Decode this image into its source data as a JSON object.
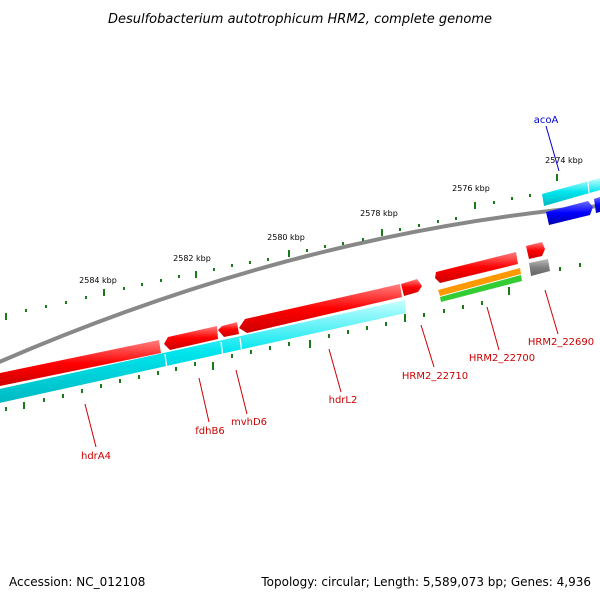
{
  "title": "Desulfobacterium autotrophicum HRM2, complete genome",
  "footer": {
    "accession": "Accession: NC_012108",
    "summary": "Topology: circular; Length: 5,589,073 bp; Genes: 4,936"
  },
  "ticks": [
    "2574 kbp",
    "2576 kbp",
    "2578 kbp",
    "2580 kbp",
    "2582 kbp",
    "2584 kbp"
  ],
  "genes": [
    {
      "name": "acoA",
      "color": "#0000cc"
    },
    {
      "name": "HRM2_22690",
      "color": "#cc0000"
    },
    {
      "name": "HRM2_22700",
      "color": "#cc0000"
    },
    {
      "name": "HRM2_22710",
      "color": "#cc0000"
    },
    {
      "name": "hdrL2",
      "color": "#cc0000"
    },
    {
      "name": "mvhD6",
      "color": "#cc0000"
    },
    {
      "name": "fdhB6",
      "color": "#cc0000"
    },
    {
      "name": "hdrA4",
      "color": "#cc0000"
    }
  ],
  "colors": {
    "backbone": "#808080",
    "cds": "#ff0000",
    "cyan_band": "#00e5ee",
    "blue_gene": "#0000ff",
    "orange_band": "#ff9900",
    "green_band": "#33cc33",
    "tick_mark": "#1a7a1a"
  }
}
